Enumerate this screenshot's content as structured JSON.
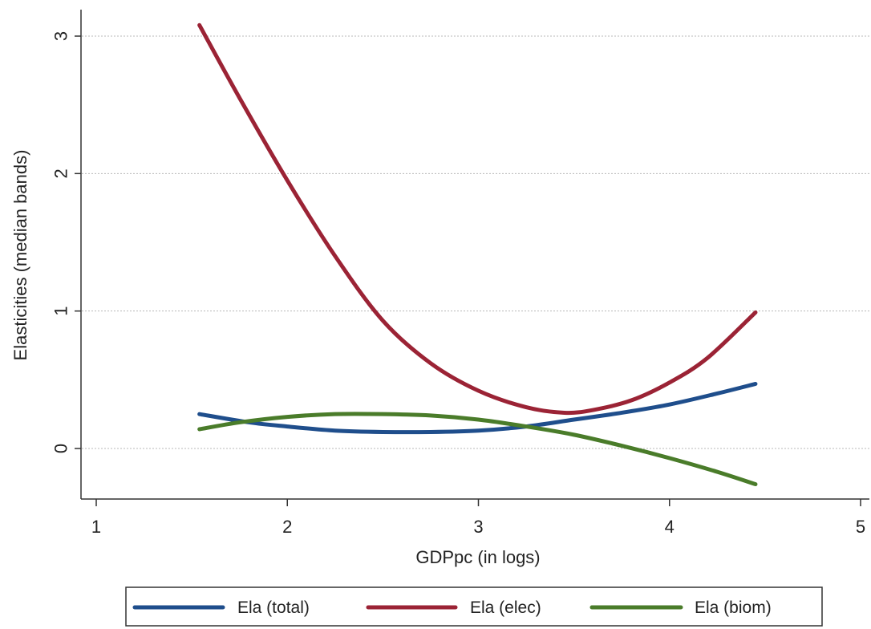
{
  "chart_data": {
    "type": "line",
    "title": "",
    "xlabel": "GDPpc (in logs)",
    "ylabel": "Elasticities (median bands)",
    "xlim": [
      1,
      5
    ],
    "ylim": [
      -0.35,
      3.2
    ],
    "xticks": [
      1,
      2,
      3,
      4,
      5
    ],
    "xtick_labels": [
      "1",
      "2",
      "3",
      "4",
      "5"
    ],
    "yticks": [
      0,
      1,
      2,
      3
    ],
    "ytick_labels": [
      "0",
      "1",
      "2",
      "3"
    ],
    "grid": "horizontal",
    "legend_position": "bottom",
    "series": [
      {
        "name": "Ela (total)",
        "color": "#1f4e8c",
        "x": [
          1.54,
          1.8,
          2.0,
          2.25,
          2.5,
          2.75,
          3.0,
          3.25,
          3.5,
          3.75,
          4.0,
          4.25,
          4.45
        ],
        "y": [
          0.25,
          0.19,
          0.16,
          0.13,
          0.12,
          0.12,
          0.13,
          0.16,
          0.21,
          0.26,
          0.32,
          0.4,
          0.47
        ]
      },
      {
        "name": "Ela (elec)",
        "color": "#9b2335",
        "x": [
          1.54,
          1.75,
          2.0,
          2.25,
          2.5,
          2.75,
          3.0,
          3.25,
          3.45,
          3.6,
          3.8,
          4.0,
          4.2,
          4.45
        ],
        "y": [
          3.08,
          2.55,
          1.95,
          1.4,
          0.93,
          0.62,
          0.42,
          0.3,
          0.26,
          0.28,
          0.35,
          0.48,
          0.66,
          0.99
        ]
      },
      {
        "name": "Ela (biom)",
        "color": "#4a7c2a",
        "x": [
          1.54,
          1.75,
          2.0,
          2.25,
          2.5,
          2.75,
          3.0,
          3.25,
          3.5,
          3.75,
          4.0,
          4.25,
          4.45
        ],
        "y": [
          0.14,
          0.19,
          0.23,
          0.25,
          0.25,
          0.24,
          0.21,
          0.16,
          0.1,
          0.02,
          -0.07,
          -0.17,
          -0.26
        ]
      }
    ]
  }
}
